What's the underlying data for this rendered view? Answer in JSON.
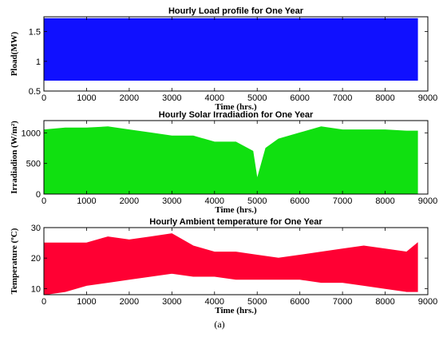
{
  "chart_data": [
    {
      "type": "area",
      "title": "Hourly Load profile for One Year",
      "xlabel": "Time (hrs.)",
      "ylabel": "Pload(MW)",
      "xlim": [
        0,
        9000
      ],
      "ylim": [
        0.5,
        1.75
      ],
      "xticks": [
        0,
        1000,
        2000,
        3000,
        4000,
        5000,
        6000,
        7000,
        8000,
        9000
      ],
      "yticks": [
        0.5,
        1,
        1.5
      ],
      "color": "#1010ff",
      "series": [
        {
          "x_range": [
            0,
            8760
          ],
          "min_envelope": [
            0.68,
            0.68
          ],
          "max_envelope": [
            1.72,
            1.72
          ]
        }
      ]
    },
    {
      "type": "area",
      "title": "Hourly Solar Irradiadion for One Year",
      "xlabel": "Time (hrs.)",
      "ylabel": "Irradiadion (W/m²)",
      "xlim": [
        0,
        9000
      ],
      "ylim": [
        0,
        1200
      ],
      "xticks": [
        0,
        1000,
        2000,
        3000,
        4000,
        5000,
        6000,
        7000,
        8000,
        9000
      ],
      "yticks": [
        0,
        500,
        1000
      ],
      "color": "#10e010",
      "series": [
        {
          "x": [
            0,
            500,
            1000,
            1500,
            2000,
            2500,
            3000,
            3500,
            4000,
            4500,
            4900,
            5000,
            5200,
            5500,
            6000,
            6500,
            7000,
            7500,
            8000,
            8500,
            8760
          ],
          "min": [
            0,
            0,
            0,
            0,
            0,
            0,
            0,
            0,
            0,
            0,
            0,
            0,
            0,
            0,
            0,
            0,
            0,
            0,
            0,
            0,
            0
          ],
          "max": [
            1050,
            1080,
            1080,
            1100,
            1050,
            1000,
            950,
            950,
            850,
            850,
            700,
            250,
            750,
            900,
            1000,
            1100,
            1050,
            1050,
            1050,
            1030,
            1030
          ]
        }
      ]
    },
    {
      "type": "area",
      "title": "Hourly Ambient temperature for One Year",
      "xlabel": "Time (hrs.)",
      "ylabel": "Temperature (ºC)",
      "xlim": [
        0,
        9000
      ],
      "ylim": [
        8,
        30
      ],
      "xticks": [
        0,
        1000,
        2000,
        3000,
        4000,
        5000,
        6000,
        7000,
        8000,
        9000
      ],
      "yticks": [
        10,
        20,
        30
      ],
      "color": "#ff0033",
      "series": [
        {
          "x": [
            0,
            500,
            1000,
            1500,
            2000,
            2500,
            3000,
            3500,
            4000,
            4500,
            5000,
            5500,
            6000,
            6500,
            7000,
            7500,
            8000,
            8500,
            8760
          ],
          "min": [
            8,
            9,
            11,
            12,
            13,
            14,
            15,
            14,
            14,
            13,
            13,
            13,
            13,
            12,
            12,
            11,
            10,
            9,
            9
          ],
          "max": [
            25,
            25,
            25,
            27,
            26,
            27,
            28,
            24,
            22,
            22,
            21,
            20,
            21,
            22,
            23,
            24,
            23,
            22,
            25
          ]
        }
      ]
    }
  ],
  "caption": "(a)"
}
